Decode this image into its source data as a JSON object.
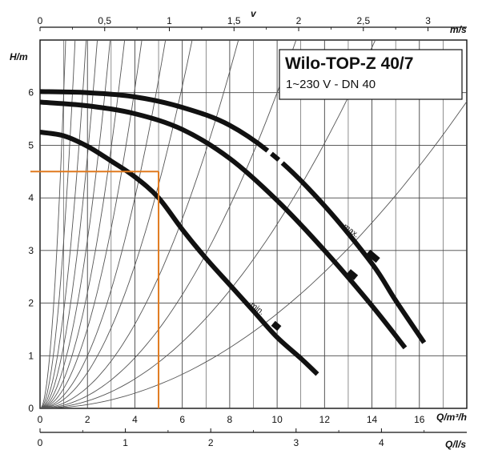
{
  "chart_data": {
    "type": "line",
    "title": "Wilo-TOP-Z 40/7",
    "subtitle": "1~230 V - DN 40",
    "ylabel": "H/m",
    "xlabel": "Q/m³/h",
    "x_range": [
      0,
      18
    ],
    "y_range": [
      0,
      7
    ],
    "grid": true,
    "x_ticks": [
      0,
      2,
      4,
      6,
      8,
      10,
      12,
      14,
      16
    ],
    "y_ticks": [
      0,
      1,
      2,
      3,
      4,
      5,
      6
    ],
    "top_axis": {
      "label": "v",
      "unit": "m/s",
      "ticks": [
        "0",
        "0,5",
        "1",
        "1,5",
        "2",
        "2,5",
        "3"
      ],
      "range": [
        0,
        3.3
      ]
    },
    "bottom_axis": {
      "unit": "Q/l/s",
      "ticks": [
        "0",
        "1",
        "2",
        "3",
        "4"
      ],
      "range": [
        0,
        5
      ]
    },
    "annotations": [
      "max.",
      "min."
    ],
    "series": [
      {
        "key": "max",
        "x": [
          0,
          2,
          4,
          6,
          8,
          10,
          12,
          14,
          15,
          16.2
        ],
        "y": [
          6.02,
          6.0,
          5.92,
          5.72,
          5.38,
          4.75,
          3.85,
          2.75,
          2.05,
          1.25
        ]
      },
      {
        "key": "mid",
        "x": [
          0,
          2,
          4,
          6,
          8,
          10,
          12,
          14,
          15.4
        ],
        "y": [
          5.82,
          5.75,
          5.6,
          5.3,
          4.75,
          3.95,
          3.0,
          1.95,
          1.15
        ]
      },
      {
        "key": "min",
        "x": [
          0,
          1,
          2,
          3,
          4,
          5,
          6,
          7,
          8,
          9,
          10,
          11,
          11.7
        ],
        "y": [
          5.25,
          5.18,
          4.98,
          4.7,
          4.4,
          4.0,
          3.4,
          2.85,
          2.35,
          1.85,
          1.35,
          0.95,
          0.65
        ]
      }
    ],
    "reference_lines": {
      "h": 4.5,
      "q": 5
    },
    "system_curve_factors": [
      6.0,
      3.2,
      1.85,
      1.2,
      0.8,
      0.55,
      0.38,
      0.25,
      0.17,
      0.1,
      0.06,
      0.035,
      0.018
    ],
    "colors": {
      "curve": "#111111",
      "grid": "#444444",
      "system": "#555555",
      "reference": "#e07a1f"
    }
  }
}
